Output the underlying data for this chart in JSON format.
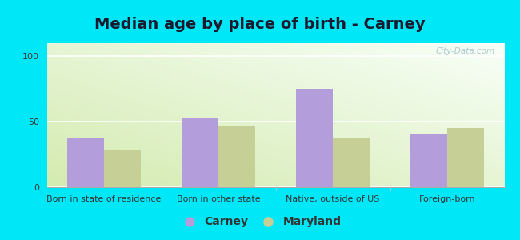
{
  "title": "Median age by place of birth - Carney",
  "categories": [
    "Born in state of residence",
    "Born in other state",
    "Native, outside of US",
    "Foreign-born"
  ],
  "carney_values": [
    37,
    53,
    75,
    41
  ],
  "maryland_values": [
    29,
    47,
    38,
    45
  ],
  "carney_color": "#b39ddb",
  "maryland_color": "#c5cf96",
  "ylim": [
    0,
    110
  ],
  "yticks": [
    0,
    50,
    100
  ],
  "background_outer": "#00e8f8",
  "watermark": "City-Data.com",
  "legend_carney": "Carney",
  "legend_maryland": "Maryland",
  "bar_width": 0.32,
  "title_fontsize": 14,
  "tick_fontsize": 8,
  "legend_fontsize": 10,
  "title_color": "#1a1a2e"
}
